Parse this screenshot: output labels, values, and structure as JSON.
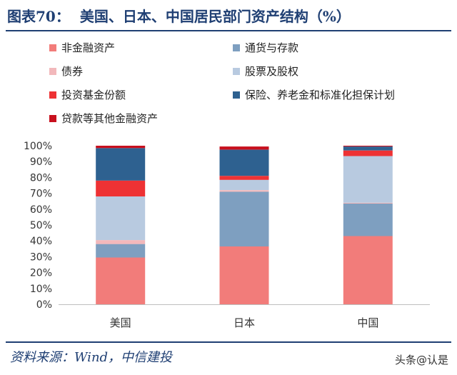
{
  "header": {
    "figure_number": "图表70：",
    "title": "美国、日本、中国居民部门资产结构（%）"
  },
  "footer": {
    "source": "资料来源：Wind，中信建投",
    "watermark": "头条@认是"
  },
  "chart_data": {
    "type": "bar",
    "stacked": true,
    "categories": [
      "美国",
      "日本",
      "中国"
    ],
    "ylim": [
      0,
      100
    ],
    "yticks": [
      "0%",
      "10%",
      "20%",
      "30%",
      "40%",
      "50%",
      "60%",
      "70%",
      "80%",
      "90%",
      "100%"
    ],
    "legend_position": "top",
    "series": [
      {
        "name": "非金融资产",
        "color": "#f27c7a",
        "values": [
          29.5,
          36.5,
          43.0
        ]
      },
      {
        "name": "通货与存款",
        "color": "#7e9fc0",
        "values": [
          8.5,
          34.5,
          20.5
        ]
      },
      {
        "name": "债券",
        "color": "#f2b8bb",
        "values": [
          2.5,
          1.0,
          0.5
        ]
      },
      {
        "name": "股票及股权",
        "color": "#b8cae0",
        "values": [
          27.5,
          6.5,
          29.5
        ]
      },
      {
        "name": "投资基金份额",
        "color": "#ee3234",
        "values": [
          10.0,
          2.5,
          3.5
        ]
      },
      {
        "name": "保险、养老金和标准化担保计划",
        "color": "#2e6190",
        "values": [
          20.5,
          16.5,
          2.5
        ]
      },
      {
        "name": "贷款等其他金融资产",
        "color": "#c8101e",
        "values": [
          1.5,
          2.0,
          0.5
        ]
      }
    ]
  }
}
